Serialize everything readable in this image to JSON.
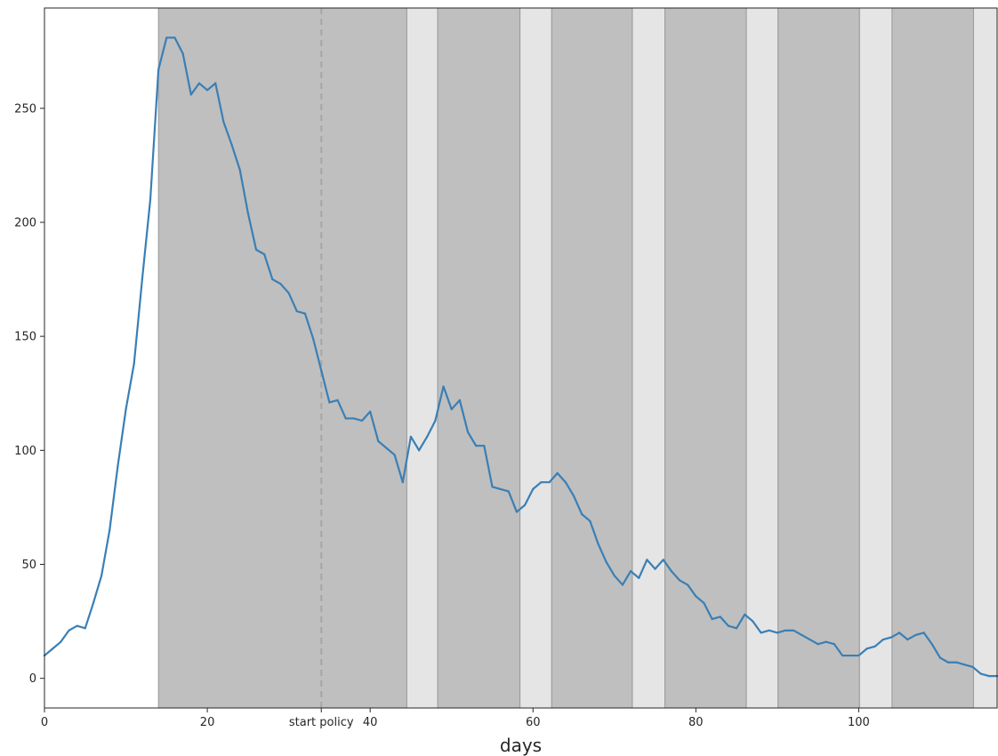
{
  "chart_data": {
    "type": "line",
    "xlabel": "days",
    "ylabel": "",
    "title": "",
    "xlim": [
      0,
      117
    ],
    "ylim": [
      -13,
      294
    ],
    "grid": false,
    "legend": false,
    "x_ticks": [
      {
        "value": 0,
        "label": "0"
      },
      {
        "value": 20,
        "label": "20"
      },
      {
        "value": 34,
        "label": "start policy"
      },
      {
        "value": 40,
        "label": "40"
      },
      {
        "value": 60,
        "label": "60"
      },
      {
        "value": 80,
        "label": "80"
      },
      {
        "value": 100,
        "label": "100"
      }
    ],
    "y_ticks": [
      {
        "value": 0,
        "label": "0"
      },
      {
        "value": 50,
        "label": "50"
      },
      {
        "value": 100,
        "label": "100"
      },
      {
        "value": 150,
        "label": "150"
      },
      {
        "value": 200,
        "label": "200"
      },
      {
        "value": 250,
        "label": "250"
      }
    ],
    "policy_start": 34,
    "bands": [
      {
        "start": 14,
        "end": 44.5,
        "kind": "dark"
      },
      {
        "start": 44.5,
        "end": 48.3,
        "kind": "light"
      },
      {
        "start": 48.3,
        "end": 58.4,
        "kind": "dark"
      },
      {
        "start": 58.4,
        "end": 62.3,
        "kind": "light"
      },
      {
        "start": 62.3,
        "end": 72.2,
        "kind": "dark"
      },
      {
        "start": 72.2,
        "end": 76.2,
        "kind": "light"
      },
      {
        "start": 76.2,
        "end": 86.2,
        "kind": "dark"
      },
      {
        "start": 86.2,
        "end": 90.1,
        "kind": "light"
      },
      {
        "start": 90.1,
        "end": 100.1,
        "kind": "dark"
      },
      {
        "start": 100.1,
        "end": 104.1,
        "kind": "light"
      },
      {
        "start": 104.1,
        "end": 114.1,
        "kind": "dark"
      },
      {
        "start": 114.1,
        "end": 117,
        "kind": "light"
      }
    ],
    "series": [
      {
        "color": "#3a7fb5",
        "x": [
          0,
          1,
          2,
          3,
          4,
          5,
          6,
          7,
          8,
          9,
          10,
          11,
          12,
          13,
          14,
          15,
          16,
          17,
          18,
          19,
          20,
          21,
          22,
          23,
          24,
          25,
          26,
          27,
          28,
          29,
          30,
          31,
          32,
          33,
          34,
          35,
          36,
          37,
          38,
          39,
          40,
          41,
          42,
          43,
          44,
          45,
          46,
          47,
          48,
          49,
          50,
          51,
          52,
          53,
          54,
          55,
          56,
          57,
          58,
          59,
          60,
          61,
          62,
          63,
          64,
          65,
          66,
          67,
          68,
          69,
          70,
          71,
          72,
          73,
          74,
          75,
          76,
          77,
          78,
          79,
          80,
          81,
          82,
          83,
          84,
          85,
          86,
          87,
          88,
          89,
          90,
          91,
          92,
          93,
          94,
          95,
          96,
          97,
          98,
          99,
          100,
          101,
          102,
          103,
          104,
          105,
          106,
          107,
          108,
          109,
          110,
          111,
          112,
          113,
          114,
          115,
          116,
          117
        ],
        "values": [
          10,
          13,
          16,
          21,
          23,
          22,
          33,
          45,
          65,
          93,
          118,
          138,
          175,
          210,
          267,
          281,
          281,
          274,
          256,
          261,
          258,
          261,
          244,
          234,
          223,
          204,
          188,
          186,
          175,
          173,
          169,
          161,
          160,
          149,
          135,
          121,
          122,
          114,
          114,
          113,
          117,
          104,
          101,
          98,
          86,
          106,
          100,
          106,
          113,
          128,
          118,
          122,
          108,
          102,
          102,
          84,
          83,
          82,
          73,
          76,
          83,
          86,
          86,
          90,
          86,
          80,
          72,
          69,
          59,
          51,
          45,
          41,
          47,
          44,
          52,
          48,
          52,
          47,
          43,
          41,
          36,
          33,
          26,
          27,
          23,
          22,
          28,
          25,
          20,
          21,
          20,
          21,
          21,
          19,
          17,
          15,
          16,
          15,
          10,
          10,
          10,
          13,
          14,
          17,
          18,
          20,
          17,
          19,
          20,
          15,
          9,
          7,
          7,
          6,
          5,
          2,
          1,
          1
        ]
      }
    ]
  },
  "colors": {
    "band_dark": "#bfbfbf",
    "band_light": "#e5e5e5",
    "band_edge": "#9a9a9a",
    "policy_line": "#a6a6a6",
    "axes": "#262626"
  }
}
